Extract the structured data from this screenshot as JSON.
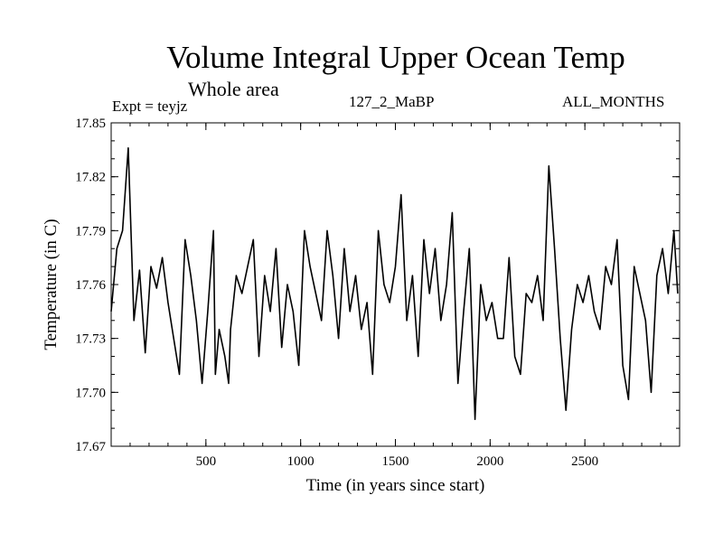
{
  "header": {
    "title": "Volume Integral Upper Ocean Temp",
    "subtitle": "Whole area",
    "experiment": "Expt = teyjz",
    "run": "127_2_MaBP",
    "months": "ALL_MONTHS"
  },
  "chart_data": {
    "type": "line",
    "title": "Volume Integral Upper Ocean Temp",
    "xlabel": "Time (in years since start)",
    "ylabel": "Temperature (in C)",
    "xlim": [
      0,
      3000
    ],
    "ylim": [
      17.67,
      17.85
    ],
    "x_ticks": [
      500,
      1000,
      1500,
      2000,
      2500
    ],
    "x_tick_labels": [
      "500",
      "1000",
      "1500",
      "2000",
      "2500"
    ],
    "y_ticks": [
      17.67,
      17.7,
      17.73,
      17.76,
      17.79,
      17.82,
      17.85
    ],
    "y_tick_labels": [
      "17.67",
      "17.70",
      "17.73",
      "17.76",
      "17.79",
      "17.82",
      "17.85"
    ],
    "grid": false,
    "series": [
      {
        "name": "teyjz",
        "x": [
          0,
          30,
          60,
          90,
          120,
          150,
          180,
          210,
          240,
          270,
          300,
          330,
          360,
          390,
          420,
          450,
          480,
          510,
          540,
          550,
          570,
          600,
          620,
          630,
          660,
          690,
          720,
          750,
          780,
          810,
          840,
          870,
          900,
          930,
          960,
          990,
          1020,
          1050,
          1080,
          1110,
          1140,
          1170,
          1200,
          1230,
          1260,
          1290,
          1320,
          1350,
          1380,
          1410,
          1440,
          1470,
          1500,
          1530,
          1560,
          1590,
          1620,
          1650,
          1680,
          1710,
          1740,
          1770,
          1800,
          1830,
          1860,
          1890,
          1920,
          1950,
          1980,
          2010,
          2040,
          2070,
          2100,
          2130,
          2160,
          2190,
          2220,
          2250,
          2280,
          2310,
          2340,
          2370,
          2400,
          2430,
          2460,
          2490,
          2520,
          2550,
          2580,
          2610,
          2640,
          2670,
          2700,
          2730,
          2760,
          2790,
          2820,
          2850,
          2880,
          2910,
          2940,
          2970,
          2990
        ],
        "values": [
          17.745,
          17.78,
          17.79,
          17.836,
          17.74,
          17.768,
          17.722,
          17.77,
          17.758,
          17.775,
          17.75,
          17.73,
          17.71,
          17.785,
          17.765,
          17.74,
          17.705,
          17.745,
          17.79,
          17.71,
          17.735,
          17.72,
          17.705,
          17.735,
          17.765,
          17.755,
          17.77,
          17.785,
          17.72,
          17.765,
          17.745,
          17.78,
          17.725,
          17.76,
          17.745,
          17.715,
          17.79,
          17.77,
          17.755,
          17.74,
          17.79,
          17.765,
          17.73,
          17.78,
          17.745,
          17.765,
          17.735,
          17.75,
          17.71,
          17.79,
          17.76,
          17.75,
          17.77,
          17.81,
          17.74,
          17.765,
          17.72,
          17.785,
          17.755,
          17.78,
          17.74,
          17.76,
          17.8,
          17.705,
          17.745,
          17.78,
          17.685,
          17.76,
          17.74,
          17.75,
          17.73,
          17.73,
          17.775,
          17.72,
          17.71,
          17.755,
          17.75,
          17.765,
          17.74,
          17.826,
          17.78,
          17.73,
          17.69,
          17.735,
          17.76,
          17.75,
          17.765,
          17.745,
          17.735,
          17.77,
          17.76,
          17.785,
          17.715,
          17.696,
          17.77,
          17.755,
          17.74,
          17.7,
          17.765,
          17.78,
          17.755,
          17.79,
          17.755
        ]
      }
    ]
  }
}
